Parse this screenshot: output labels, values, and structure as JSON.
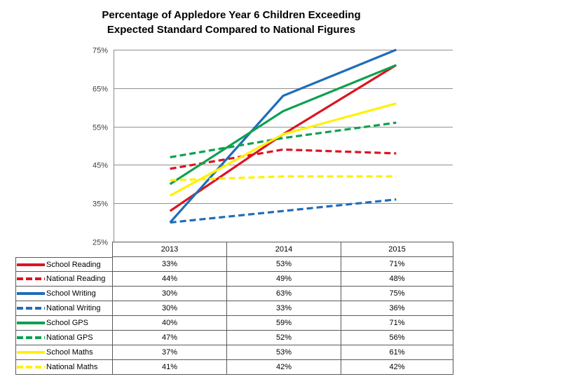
{
  "chart_data": {
    "type": "line",
    "title": "Percentage of Appledore Year 6 Children Exceeding Expected Standard Compared to National Figures",
    "title_lines": [
      "Percentage of Appledore Year 6 Children Exceeding",
      "Expected Standard Compared to National Figures"
    ],
    "categories": [
      "2013",
      "2014",
      "2015"
    ],
    "series": [
      {
        "name": "School Reading",
        "values": [
          33,
          53,
          71
        ],
        "color": "#dc1420",
        "dash": false
      },
      {
        "name": "National Reading",
        "values": [
          44,
          49,
          48
        ],
        "color": "#dc1420",
        "dash": true
      },
      {
        "name": "School Writing",
        "values": [
          30,
          63,
          75
        ],
        "color": "#1f6db8",
        "dash": false
      },
      {
        "name": "National Writing",
        "values": [
          30,
          33,
          36
        ],
        "color": "#1f6db8",
        "dash": true
      },
      {
        "name": "School GPS",
        "values": [
          40,
          59,
          71
        ],
        "color": "#0da14f",
        "dash": false
      },
      {
        "name": "National GPS",
        "values": [
          47,
          52,
          56
        ],
        "color": "#0da14f",
        "dash": true
      },
      {
        "name": "School Maths",
        "values": [
          37,
          53,
          61
        ],
        "color": "#fff100",
        "dash": false
      },
      {
        "name": "National Maths",
        "values": [
          41,
          42,
          42
        ],
        "color": "#fff100",
        "dash": true
      }
    ],
    "ylim": [
      25,
      75
    ],
    "ytick_step": 10,
    "yticks": [
      "25%",
      "35%",
      "45%",
      "55%",
      "65%",
      "75%"
    ],
    "value_suffix": "%",
    "xlabel": "",
    "ylabel": "",
    "grid": true,
    "legend_position": "table-left-column"
  },
  "colors": {
    "gridline": "#909090",
    "axis_line": "#8c8c8c",
    "table_border": "#595959",
    "tick_text": "#404040",
    "title_text": "#000000"
  }
}
